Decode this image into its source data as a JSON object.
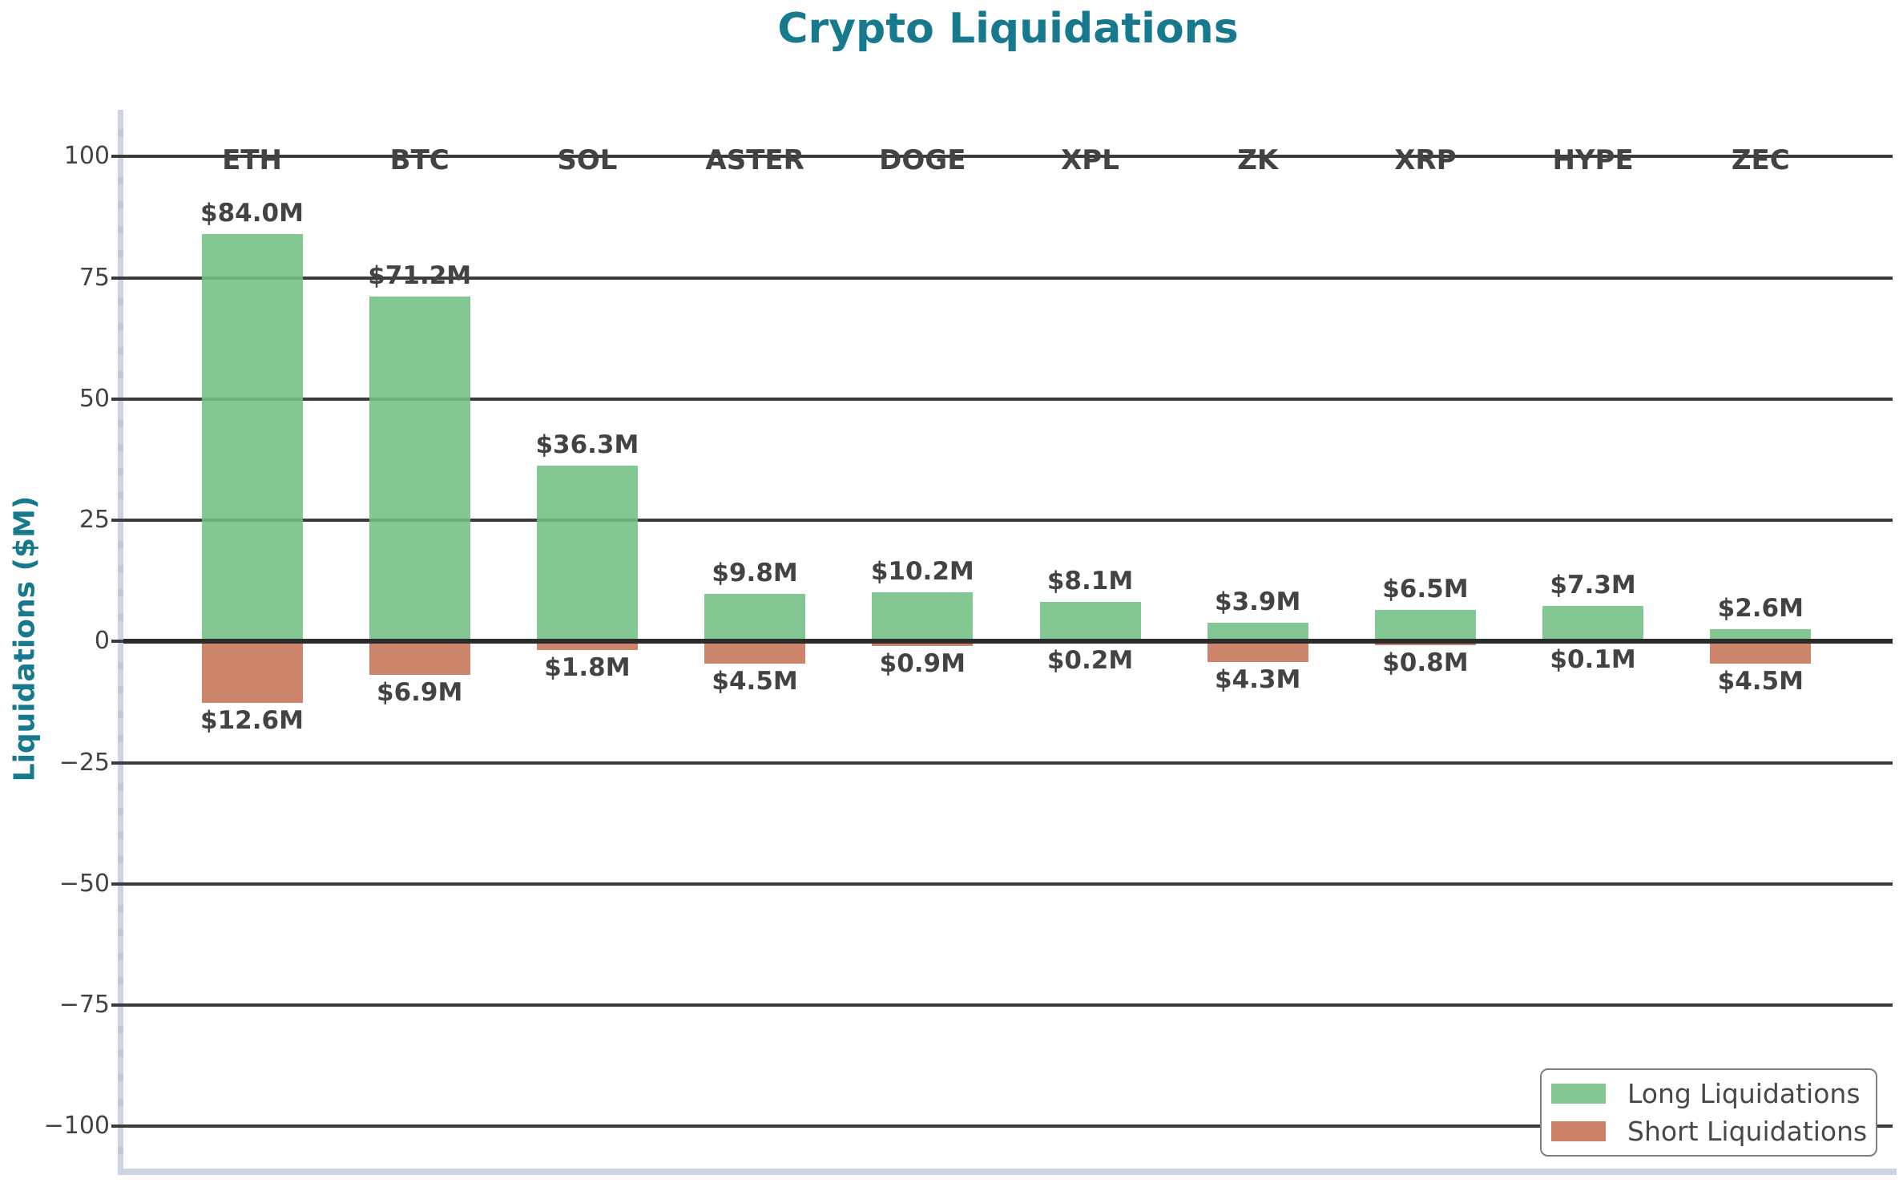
{
  "chart_data": {
    "type": "bar",
    "title": "Crypto Liquidations",
    "ylabel": "Liquidations ($M)",
    "xlabel": "",
    "categories": [
      "ETH",
      "BTC",
      "SOL",
      "ASTER",
      "DOGE",
      "XPL",
      "ZK",
      "XRP",
      "HYPE",
      "ZEC"
    ],
    "series": [
      {
        "name": "Long Liquidations",
        "direction": "up",
        "values": [
          84.0,
          71.2,
          36.3,
          9.8,
          10.2,
          8.1,
          3.9,
          6.5,
          7.3,
          2.6
        ],
        "value_labels": [
          "$84.0M",
          "$71.2M",
          "$36.3M",
          "$9.8M",
          "$10.2M",
          "$8.1M",
          "$3.9M",
          "$6.5M",
          "$7.3M",
          "$2.6M"
        ],
        "color": "#72c084",
        "legend_color": "#84c795"
      },
      {
        "name": "Short Liquidations",
        "direction": "down",
        "values": [
          -12.6,
          -6.9,
          -1.8,
          -4.5,
          -0.9,
          -0.2,
          -4.3,
          -0.8,
          -0.1,
          -4.5
        ],
        "value_labels": [
          "$12.6M",
          "$6.9M",
          "$1.8M",
          "$4.5M",
          "$0.9M",
          "$0.2M",
          "$4.3M",
          "$0.8M",
          "$0.1M",
          "$4.5M"
        ],
        "color": "#c57356",
        "legend_color": "#cd8169"
      }
    ],
    "y_axis": {
      "tick_values": [
        100,
        75,
        50,
        25,
        0,
        -25,
        -50,
        -75,
        -100
      ],
      "tick_labels": [
        "100",
        "75",
        "50",
        "25",
        "0",
        "−25",
        "−50",
        "−75",
        "−100"
      ],
      "minor_tick_step": 5,
      "ylim": [
        -110,
        110
      ]
    },
    "grid": true,
    "legend": {
      "position": "lower right",
      "entries": [
        "Long Liquidations",
        "Short Liquidations"
      ]
    },
    "colors": {
      "title": "#17798e",
      "axis_label": "#17798e",
      "tick_text": "#434343",
      "bar_label_text": "#434343",
      "gridline": "#3b3b3b",
      "zero_line": "#2b2b2b",
      "spine": "#ccd3e2",
      "minor_tick": "#bfc8da",
      "background": "#ffffff"
    }
  }
}
